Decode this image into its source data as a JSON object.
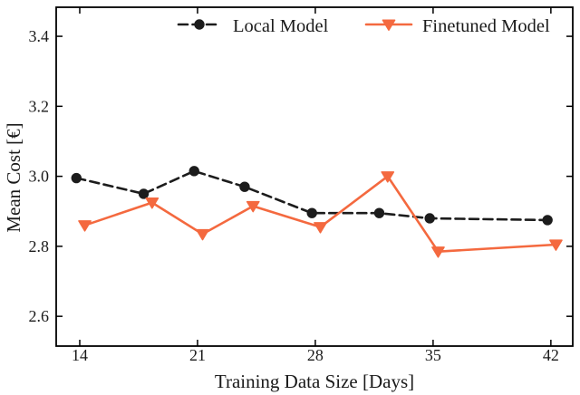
{
  "figure": {
    "background": "#ffffff",
    "frame_color": "#000000"
  },
  "chart_data": {
    "type": "line",
    "title": "",
    "xlabel": "Training Data Size [Days]",
    "ylabel": "Mean Cost [€]",
    "x_ticks": [
      14,
      21,
      28,
      35,
      42
    ],
    "x_tick_labels": [
      "14",
      "21",
      "28",
      "35",
      "42"
    ],
    "y_ticks": [
      2.6,
      2.8,
      3.0,
      3.2,
      3.4
    ],
    "y_tick_labels": [
      "2.6",
      "2.8",
      "3.0",
      "3.2",
      "3.4"
    ],
    "xlim": [
      12.6,
      43.3
    ],
    "ylim": [
      2.515,
      3.483
    ],
    "grid": false,
    "tick_direction": "in",
    "legend_position": "top-inside-horizontal",
    "days": [
      14,
      18,
      21,
      24,
      28,
      32,
      35,
      42
    ],
    "series": [
      {
        "name": "Local Model",
        "color": "#1c1c1c",
        "line_style": "dashed",
        "marker": "circle",
        "x_offset_days": -0.2,
        "values": [
          2.995,
          2.95,
          3.015,
          2.97,
          2.895,
          2.895,
          2.88,
          2.875
        ]
      },
      {
        "name": "Finetuned Model",
        "color": "#F4693F",
        "line_style": "solid",
        "marker": "triangle-down",
        "x_offset_days": 0.3,
        "values": [
          2.86,
          2.925,
          2.835,
          2.915,
          2.855,
          3.0,
          2.785,
          2.805
        ]
      }
    ]
  }
}
